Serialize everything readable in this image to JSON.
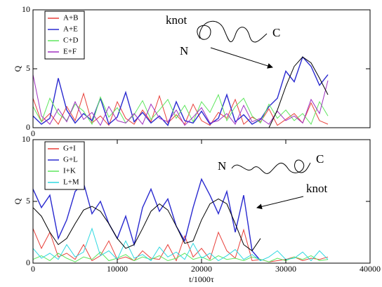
{
  "chart_data": [
    {
      "type": "line",
      "ylabel": "Q",
      "xlim": [
        0,
        40000
      ],
      "ylim": [
        0,
        10
      ],
      "yticks": [
        0,
        5,
        10
      ],
      "xticks": [
        0
      ],
      "x": [
        0,
        1000,
        2000,
        3000,
        4000,
        5000,
        6000,
        7000,
        8000,
        9000,
        10000,
        11000,
        12000,
        13000,
        14000,
        15000,
        16000,
        17000,
        18000,
        19000,
        20000,
        21000,
        22000,
        23000,
        24000,
        25000,
        26000,
        27000,
        28000,
        29000,
        30000,
        31000,
        32000,
        33000,
        34000,
        35000
      ],
      "series": [
        {
          "name": "A+B",
          "color": "#e8403a",
          "values": [
            2.5,
            0.5,
            1.2,
            0.3,
            1.8,
            0.6,
            2.9,
            0.4,
            1.0,
            0.2,
            2.2,
            0.8,
            0.3,
            1.5,
            0.5,
            2.7,
            0.4,
            1.1,
            0.3,
            2.0,
            0.6,
            0.2,
            1.3,
            0.8,
            2.4,
            0.3,
            0.9,
            0.5,
            1.6,
            0.2,
            0.7,
            1.2,
            0.4,
            2.1,
            0.6,
            0.3
          ]
        },
        {
          "name": "A+E",
          "color": "#2a2ad0",
          "values": [
            1.0,
            0.3,
            0.8,
            4.2,
            1.5,
            0.4,
            1.2,
            0.6,
            2.5,
            0.3,
            0.9,
            3.0,
            0.5,
            1.3,
            0.4,
            1.0,
            0.2,
            2.2,
            0.6,
            0.4,
            1.4,
            0.3,
            0.8,
            2.8,
            0.5,
            1.1,
            0.3,
            0.7,
            1.8,
            2.5,
            4.8,
            3.9,
            6.0,
            5.2,
            3.6,
            4.5
          ]
        },
        {
          "name": "C+D",
          "color": "#5ee65e",
          "values": [
            1.8,
            0.5,
            2.5,
            1.2,
            0.6,
            2.0,
            1.4,
            0.3,
            2.6,
            0.9,
            1.7,
            0.4,
            1.1,
            2.3,
            0.7,
            1.5,
            2.4,
            0.8,
            1.9,
            0.5,
            2.2,
            1.3,
            2.8,
            0.6,
            1.8,
            2.5,
            1.0,
            0.4,
            2.0,
            0.8,
            1.5,
            0.6,
            1.2,
            0.3,
            2.2,
            1.0
          ]
        },
        {
          "name": "E+F",
          "color": "#a030c0",
          "values": [
            4.5,
            1.0,
            0.3,
            1.6,
            0.5,
            2.2,
            0.7,
            1.3,
            0.2,
            1.8,
            0.6,
            0.4,
            1.2,
            0.3,
            2.0,
            0.8,
            0.5,
            1.5,
            0.2,
            0.9,
            1.7,
            0.4,
            0.6,
            1.2,
            0.3,
            1.9,
            0.5,
            0.8,
            0.3,
            1.4,
            0.6,
            1.0,
            0.4,
            2.4,
            1.2,
            4.0
          ]
        }
      ],
      "fit": {
        "color": "#000000",
        "x": [
          28000,
          29000,
          30000,
          31000,
          32000,
          33000,
          34000,
          35000
        ],
        "values": [
          0,
          1.5,
          3.5,
          5.2,
          6.0,
          5.5,
          4.2,
          2.8
        ]
      },
      "annotations": [
        "knot",
        "N",
        "C"
      ]
    },
    {
      "type": "line",
      "ylabel": "Q",
      "xlabel": "t/1000τ",
      "xlim": [
        0,
        40000
      ],
      "ylim": [
        0,
        10
      ],
      "yticks": [
        0,
        5,
        10
      ],
      "xticks": [
        0,
        10000,
        20000,
        30000,
        40000
      ],
      "x": [
        0,
        1000,
        2000,
        3000,
        4000,
        5000,
        6000,
        7000,
        8000,
        9000,
        10000,
        11000,
        12000,
        13000,
        14000,
        15000,
        16000,
        17000,
        18000,
        19000,
        20000,
        21000,
        22000,
        23000,
        24000,
        25000,
        26000,
        27000,
        28000,
        29000,
        30000,
        31000,
        32000,
        33000,
        34000,
        35000
      ],
      "series": [
        {
          "name": "G+I",
          "color": "#e8403a",
          "values": [
            2.8,
            1.2,
            2.5,
            0.5,
            0.8,
            0.3,
            1.5,
            0.2,
            0.6,
            1.8,
            0.3,
            0.5,
            0.2,
            1.0,
            0.4,
            0.3,
            1.5,
            0.2,
            2.2,
            0.5,
            1.2,
            0.3,
            2.5,
            1.0,
            0.4,
            2.7,
            0.2,
            0.3,
            0.1,
            0.2,
            0.3,
            0.5,
            0.2,
            0.4,
            0.3,
            0.5
          ]
        },
        {
          "name": "G+L",
          "color": "#2a2ad0",
          "values": [
            6.0,
            4.5,
            5.5,
            2.0,
            3.5,
            5.8,
            6.5,
            4.0,
            5.0,
            3.2,
            2.0,
            3.8,
            1.5,
            4.5,
            6.0,
            4.2,
            5.2,
            3.0,
            1.8,
            4.5,
            6.8,
            5.5,
            4.0,
            5.8,
            2.5,
            5.5,
            1.0,
            0.2,
            null,
            null,
            null,
            null,
            null,
            null,
            null,
            null
          ]
        },
        {
          "name": "I+K",
          "color": "#5ee65e",
          "values": [
            0.3,
            0.6,
            0.2,
            0.8,
            0.4,
            0.1,
            0.5,
            0.3,
            0.9,
            0.2,
            0.4,
            0.7,
            0.2,
            0.5,
            0.3,
            0.6,
            0.2,
            0.4,
            0.8,
            0.3,
            0.5,
            0.2,
            0.6,
            0.3,
            0.4,
            0.2,
            0.5,
            0.3,
            0.1,
            0.4,
            0.2,
            0.5,
            0.3,
            0.6,
            0.2,
            0.3
          ]
        },
        {
          "name": "L+M",
          "color": "#30d8e0",
          "values": [
            1.2,
            0.4,
            0.8,
            0.3,
            1.5,
            0.5,
            0.9,
            2.8,
            0.6,
            1.0,
            0.3,
            1.8,
            0.4,
            0.7,
            0.2,
            1.3,
            0.5,
            0.9,
            0.3,
            1.6,
            0.4,
            0.8,
            0.2,
            0.6,
            1.1,
            0.3,
            0.7,
            0.2,
            0.5,
            1.0,
            0.3,
            0.4,
            0.9,
            0.2,
            1.0,
            0.3
          ]
        }
      ],
      "fit": {
        "color": "#000000",
        "x": [
          0,
          1000,
          2000,
          3000,
          4000,
          5000,
          6000,
          7000,
          8000,
          9000,
          10000,
          11000,
          12000,
          13000,
          14000,
          15000,
          16000,
          17000,
          18000,
          19000,
          20000,
          21000,
          22000,
          23000,
          24000,
          25000,
          26000,
          27000
        ],
        "values": [
          4.5,
          3.8,
          2.5,
          1.5,
          2.0,
          3.2,
          4.3,
          4.6,
          4.2,
          3.2,
          2.0,
          1.2,
          1.5,
          2.8,
          4.2,
          4.8,
          4.3,
          3.0,
          1.6,
          1.8,
          3.5,
          4.8,
          5.2,
          4.8,
          3.2,
          1.5,
          1.0,
          2.0
        ]
      },
      "annotations": [
        "N",
        "C",
        "knot"
      ]
    }
  ]
}
